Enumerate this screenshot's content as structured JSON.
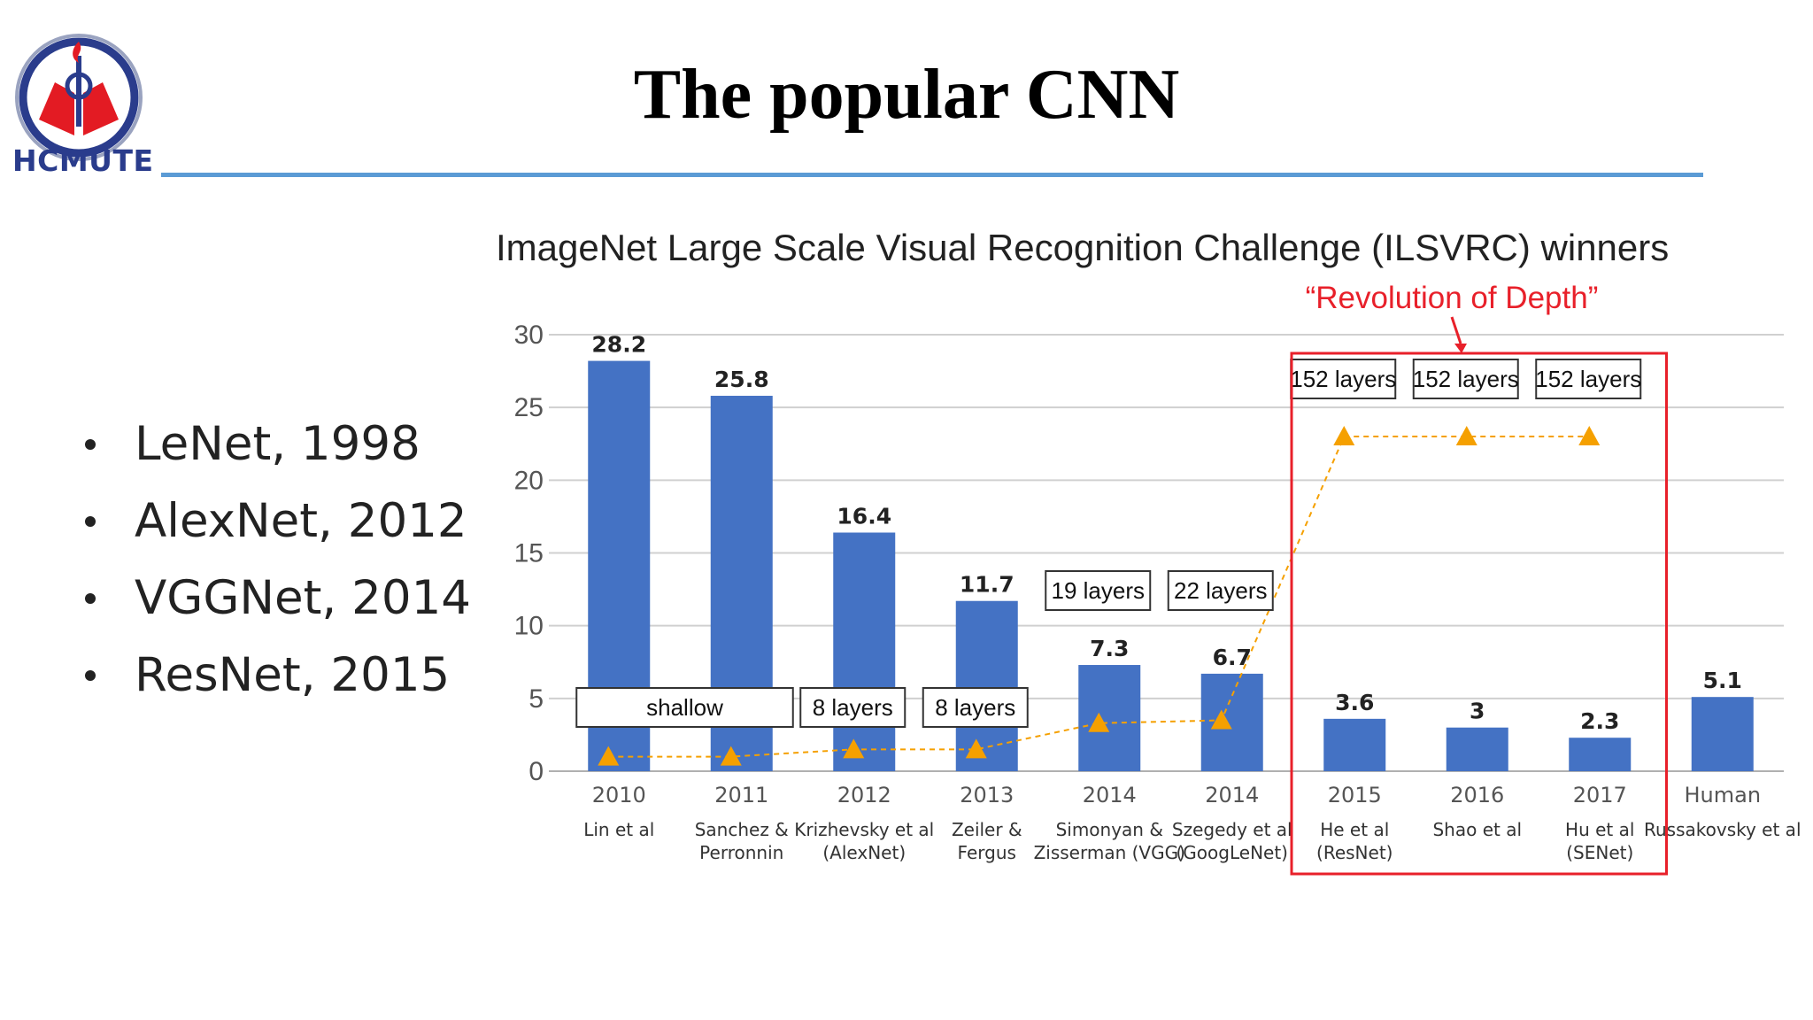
{
  "slide": {
    "title": "The popular CNN",
    "logo_text": "HCMUTE",
    "bullets": [
      "LeNet, 1998",
      "AlexNet, 2012",
      "VGGNet, 2014",
      "ResNet, 2015"
    ]
  },
  "chart_data": {
    "type": "bar",
    "title": "ImageNet Large Scale Visual Recognition Challenge (ILSVRC) winners",
    "annotation": "“Revolution of Depth”",
    "categories": [
      "2010",
      "2011",
      "2012",
      "2013",
      "2014",
      "2014",
      "2015",
      "2016",
      "2017",
      "Human"
    ],
    "subtitles": [
      [
        "Lin et al",
        ""
      ],
      [
        "Sanchez &",
        "Perronnin"
      ],
      [
        "Krizhevsky et al",
        "(AlexNet)"
      ],
      [
        "Zeiler &",
        "Fergus"
      ],
      [
        "Simonyan &",
        "Zisserman (VGG)"
      ],
      [
        "Szegedy et al",
        "(GoogLeNet)"
      ],
      [
        "He et al",
        "(ResNet)"
      ],
      [
        "Shao et al",
        ""
      ],
      [
        "Hu et al",
        "(SENet)"
      ],
      [
        "Russakovsky et al",
        ""
      ]
    ],
    "values": [
      28.2,
      25.8,
      16.4,
      11.7,
      7.3,
      6.7,
      3.6,
      3,
      2.3,
      5.1
    ],
    "value_labels": [
      "28.2",
      "25.8",
      "16.4",
      "11.7",
      "7.3",
      "6.7",
      "3.6",
      "3",
      "2.3",
      "5.1"
    ],
    "ylim": [
      0,
      30
    ],
    "yticks": [
      0,
      5,
      10,
      15,
      20,
      25,
      30
    ],
    "grid": true,
    "depth_markers": [
      1,
      1,
      1.5,
      1.5,
      3.3,
      3.5,
      23,
      23,
      23
    ],
    "depth_labels": [
      {
        "text": "shallow",
        "categories": [
          0,
          1
        ]
      },
      {
        "text": "8 layers",
        "categories": [
          2
        ]
      },
      {
        "text": "8 layers",
        "categories": [
          3
        ]
      },
      {
        "text": "19 layers",
        "categories": [
          4
        ]
      },
      {
        "text": "22 layers",
        "categories": [
          5
        ]
      },
      {
        "text": "152 layers",
        "categories": [
          6
        ]
      },
      {
        "text": "152 layers",
        "categories": [
          7
        ]
      },
      {
        "text": "152 layers",
        "categories": [
          8
        ]
      }
    ],
    "highlight_categories": [
      6,
      7,
      8
    ],
    "colors": {
      "bar": "#4472c4",
      "marker": "#f5a000",
      "highlight": "#e8202a",
      "grid": "#d0d0d0"
    }
  }
}
